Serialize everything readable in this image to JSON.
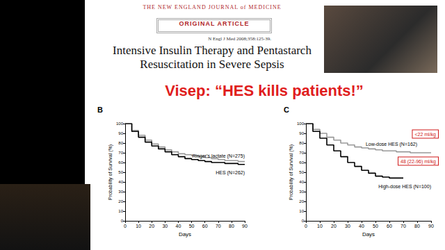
{
  "slide": {
    "journal": "THE NEW ENGLAND JOURNAL of MEDICINE",
    "section": "ORIGINAL ARTICLE",
    "citation": "N Engl J Med 2008;358:125-39.",
    "title": [
      "Intensive Insulin Therapy and Pentastarch",
      "Resuscitation in Severe Sepsis"
    ],
    "headline": "Visep: “HES kills patients!”"
  },
  "chart_data": [
    {
      "type": "line",
      "panel": "B",
      "xlabel": "Days",
      "ylabel": "Probability of Survival (%)",
      "x": [
        0,
        5,
        10,
        15,
        20,
        25,
        30,
        35,
        40,
        45,
        50,
        55,
        60,
        65,
        70,
        75,
        80,
        85,
        90
      ],
      "series": [
        {
          "name": "Ringer's lactate (N=275)",
          "color": "#999999",
          "values": [
            100,
            93,
            88,
            83,
            79,
            76,
            73,
            71,
            69,
            68,
            67,
            66,
            65,
            64,
            63,
            62,
            62,
            61,
            61
          ]
        },
        {
          "name": "HES (N=262)",
          "color": "#000000",
          "values": [
            100,
            92,
            86,
            81,
            77,
            74,
            71,
            68,
            66,
            64,
            63,
            62,
            61,
            60,
            60,
            59,
            59,
            58,
            58
          ]
        }
      ],
      "xlim": [
        0,
        90
      ],
      "ylim": [
        0,
        100
      ],
      "xticks": [
        0,
        10,
        20,
        30,
        40,
        50,
        60,
        70,
        80,
        90
      ],
      "yticks": [
        0,
        10,
        20,
        30,
        40,
        50,
        60,
        70,
        80,
        90,
        100
      ],
      "grid": false
    },
    {
      "type": "line",
      "panel": "C",
      "xlabel": "Days",
      "ylabel": "Probability of Survival (%)",
      "x": [
        0,
        5,
        10,
        15,
        20,
        25,
        30,
        35,
        40,
        45,
        50,
        55,
        60,
        65,
        70,
        75,
        80,
        85,
        90
      ],
      "series": [
        {
          "name": "Low-dose HES (N=162)",
          "color": "#999999",
          "values": [
            100,
            94,
            90,
            86,
            83,
            80,
            78,
            76,
            75,
            74,
            73,
            72,
            72,
            71,
            71,
            70,
            70,
            70,
            70
          ]
        },
        {
          "name": "High-dose HES (N=100)",
          "color": "#000000",
          "values": [
            100,
            92,
            85,
            78,
            72,
            66,
            60,
            56,
            52,
            49,
            46,
            45,
            44,
            44,
            null,
            null,
            null,
            null,
            null
          ]
        }
      ],
      "annotations": [
        "<22 ml/kg",
        "48 (22-96) ml/kg"
      ],
      "xlim": [
        0,
        90
      ],
      "ylim": [
        0,
        100
      ],
      "xticks": [
        0,
        10,
        20,
        30,
        40,
        50,
        60,
        70,
        80,
        90
      ],
      "yticks": [
        0,
        10,
        20,
        30,
        40,
        50,
        60,
        70,
        80,
        90,
        100
      ],
      "grid": false
    }
  ]
}
